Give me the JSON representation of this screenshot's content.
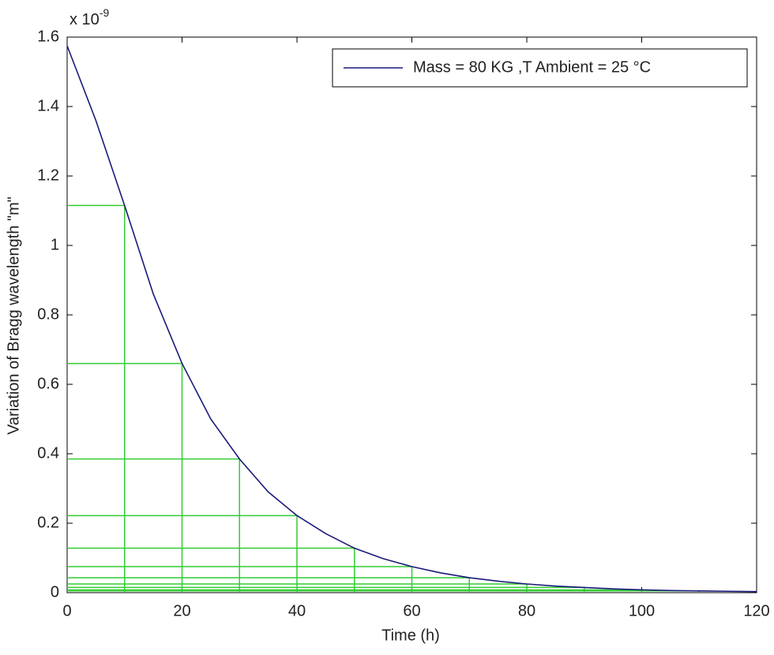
{
  "chart_data": {
    "type": "line",
    "xlabel": "Time (h)",
    "ylabel": "Variation of  Bragg wavelength  \"m\"",
    "y_multiplier": {
      "base": "x 10",
      "exponent": "-9"
    },
    "x": [
      0,
      5,
      10,
      15,
      20,
      25,
      30,
      35,
      40,
      45,
      50,
      55,
      60,
      65,
      70,
      75,
      80,
      85,
      90,
      95,
      100,
      105,
      110,
      115,
      120
    ],
    "series": [
      {
        "name": "Mass = 80 KG  ,T Ambient = 25 °C",
        "color": "#1a1a7a",
        "values": [
          1.575,
          1.36,
          1.115,
          0.86,
          0.66,
          0.5,
          0.385,
          0.29,
          0.222,
          0.17,
          0.128,
          0.098,
          0.075,
          0.057,
          0.043,
          0.033,
          0.025,
          0.019,
          0.015,
          0.011,
          0.008,
          0.006,
          0.005,
          0.004,
          0.003
        ]
      }
    ],
    "guides": {
      "color": "#33cc33",
      "x": [
        10,
        20,
        30,
        40,
        50,
        60,
        70,
        80,
        90,
        100,
        110
      ],
      "values": [
        1.115,
        0.66,
        0.385,
        0.222,
        0.128,
        0.075,
        0.043,
        0.025,
        0.015,
        0.008,
        0.005
      ]
    },
    "xlim": [
      0,
      120
    ],
    "xticks": [
      0,
      20,
      40,
      60,
      80,
      100,
      120
    ],
    "ylim": [
      0,
      1.6
    ],
    "yticks": [
      0,
      0.2,
      0.4,
      0.6,
      0.8,
      1,
      1.2,
      1.4,
      1.6
    ],
    "legend": "upper right",
    "grid": false
  }
}
